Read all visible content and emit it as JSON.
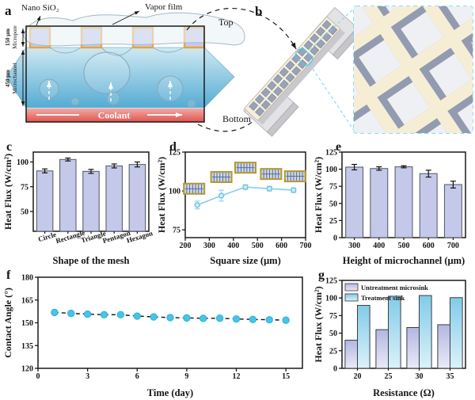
{
  "figure": {
    "panels": {
      "a": {
        "label": "a",
        "nano_sio2": "Nano SiO₂",
        "vapor_film": "Vapor film",
        "micropore_dim": "150 μm",
        "micropore": "Micropore",
        "microchannel_dim": "450 μm",
        "microchannel": "Microchannel",
        "coolant": "Coolant",
        "top": "Top",
        "bottom": "Bottom"
      },
      "b": {
        "label": "b"
      }
    },
    "colors": {
      "bar_fill": "#c5c9e9",
      "bar_stroke": "#5c6070",
      "line_blue": "#85cdec",
      "marker_cyan": "#47c4e6",
      "gold_border": "#e9a43c",
      "inset_dash": "#66cff2",
      "coolant_red": "#e1544e",
      "water_blue": "#55abd4"
    }
  },
  "chart_data": [
    {
      "id": "c",
      "panel_label": "c",
      "type": "bar",
      "categories": [
        "Circle",
        "Rectangle",
        "Triangle",
        "Pentagon",
        "Hexagon"
      ],
      "values": [
        91,
        102.5,
        90.5,
        96,
        97.5
      ],
      "errors": [
        2,
        1.5,
        2,
        2,
        2.5
      ],
      "xlabel": "Shape of the mesh",
      "ylabel": "Heat Flux (W/cm²)",
      "ylim": [
        30,
        110
      ],
      "yticks": [
        50,
        75,
        100
      ],
      "xtick_rotation": -17,
      "bar_fill": "#c5c9e9",
      "bar_stroke": "#5c6070",
      "grid": false,
      "legend": "none"
    },
    {
      "id": "d",
      "panel_label": "d",
      "type": "line",
      "x": [
        250,
        350,
        450,
        550,
        650
      ],
      "values": [
        91,
        97,
        102.5,
        101.5,
        100.5
      ],
      "errors": [
        2.5,
        3.5,
        1.5,
        1.5,
        1.5
      ],
      "xlabel": "Square size (μm)",
      "ylabel": "Heat Flux (W/cm²)",
      "xlim": [
        200,
        700
      ],
      "xticks": [
        200,
        300,
        400,
        500,
        600,
        700
      ],
      "ylim": [
        70,
        125
      ],
      "yticks": [
        75,
        100,
        125
      ],
      "line_color": "#85cdec",
      "err_color": "#9ad4ec",
      "marker": "circle-open-lightblue",
      "annotation_icons": "mesh-pattern-above-each-point",
      "grid": false,
      "legend": "none"
    },
    {
      "id": "e",
      "panel_label": "e",
      "type": "bar",
      "categories": [
        "300",
        "400",
        "500",
        "600",
        "700"
      ],
      "values": [
        103,
        101,
        103.5,
        93.5,
        77.5
      ],
      "errors": [
        4,
        2.5,
        1.5,
        5,
        5
      ],
      "xlabel": "Height of microchannel (μm)",
      "ylabel": "Heat Flux (W/cm²)",
      "ylim": [
        0,
        125
      ],
      "yticks": [
        0,
        25,
        50,
        75,
        100,
        125
      ],
      "bar_fill": "#c5c9e9",
      "bar_stroke": "#5c6070",
      "grid": false,
      "legend": "none"
    },
    {
      "id": "f",
      "panel_label": "f",
      "type": "scatter-line",
      "x": [
        1,
        2,
        3,
        4,
        5,
        6,
        7,
        8,
        9,
        10,
        11,
        12,
        13,
        14,
        15
      ],
      "values": [
        156.8,
        156.2,
        155.7,
        155.3,
        155.3,
        154.4,
        153.9,
        153.4,
        153.2,
        152.9,
        153.0,
        152.5,
        152.2,
        152.0,
        151.7
      ],
      "xlabel": "Time (day)",
      "ylabel": "Contact Angle (°)",
      "xlim": [
        0,
        16
      ],
      "xticks": [
        0,
        3,
        6,
        9,
        12,
        15
      ],
      "ylim": [
        120,
        180
      ],
      "yticks": [
        120,
        135,
        150,
        165,
        180
      ],
      "line_style": "dashed",
      "line_color": "#111111",
      "marker_fill": "#47c4e6",
      "marker_stroke": "#2fb3d9",
      "grid": false,
      "legend": "none"
    },
    {
      "id": "g",
      "panel_label": "g",
      "type": "grouped-bar",
      "categories": [
        "20",
        "25",
        "30",
        "35"
      ],
      "series": [
        {
          "name": "Untreatment microsink",
          "values": [
            40,
            55,
            58,
            62
          ],
          "fill_top": "#b2b6e2",
          "fill_bottom": "#e9ebf7"
        },
        {
          "name": "Treatment sink",
          "values": [
            89.5,
            102.5,
            103.5,
            100.5
          ],
          "fill_top": "#82cbe8",
          "fill_bottom": "#dbf2fa"
        }
      ],
      "xlabel": "Resistance (Ω)",
      "ylabel": "Heat Flux (W/cm²)",
      "ylim": [
        0,
        125
      ],
      "yticks": [
        0,
        25,
        50,
        75,
        100,
        125
      ],
      "grid": false,
      "legend_position": "top-left"
    }
  ]
}
